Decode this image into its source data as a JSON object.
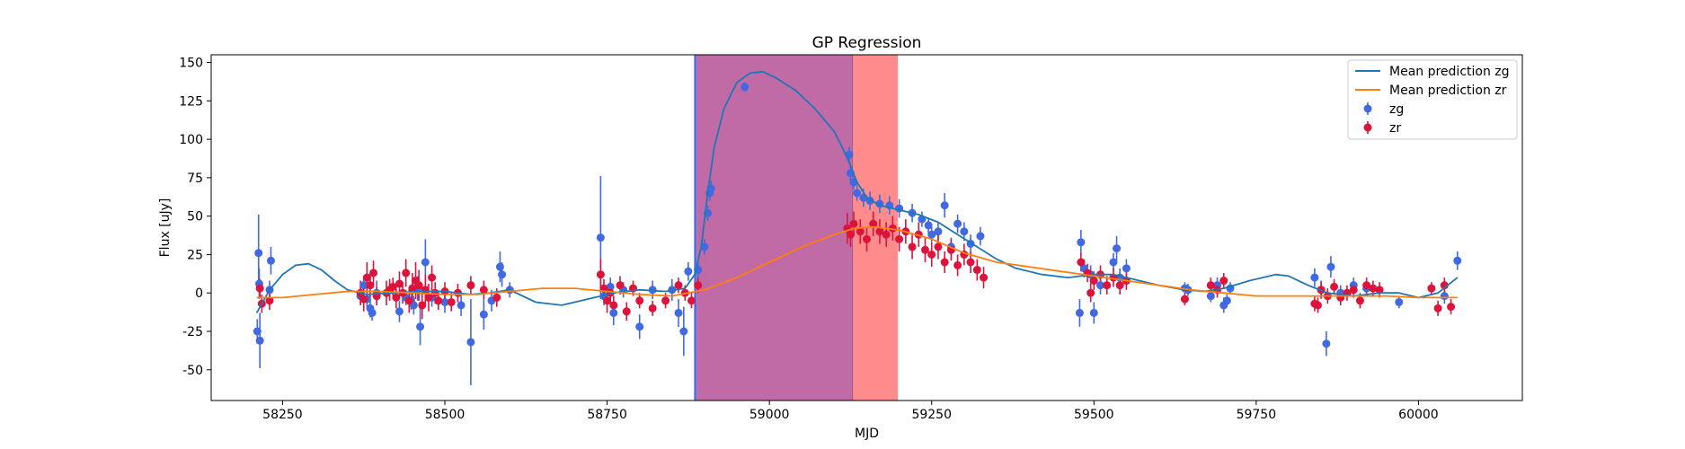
{
  "chart_data": {
    "type": "scatter",
    "title": "GP Regression",
    "xlabel": "MJD",
    "ylabel": "Flux [uJy]",
    "xlim": [
      58140,
      60160
    ],
    "ylim": [
      -70,
      155
    ],
    "xticks": [
      58250,
      58500,
      58750,
      59000,
      59250,
      59500,
      59750,
      60000
    ],
    "yticks": [
      -50,
      -25,
      0,
      25,
      50,
      75,
      100,
      125,
      150
    ],
    "legend_position": "top-right",
    "colors": {
      "zg_line": "#1f77b4",
      "zr_line": "#ff7f0e",
      "zg_points": "#4169e1",
      "zr_points": "#dc143c",
      "span_blue": "#5b6ee1",
      "span_red": "#ff8c8c",
      "span_overlap": "#c06aa6"
    },
    "spans": [
      {
        "name": "zg",
        "x_start": 58885,
        "x_end": 59128
      },
      {
        "name": "zr",
        "x_start": 58888,
        "x_end": 59198
      }
    ],
    "lines": [
      {
        "name": "Mean prediction zg",
        "x": [
          58210,
          58230,
          58250,
          58270,
          58290,
          58310,
          58330,
          58350,
          58380,
          58420,
          58460,
          58500,
          58540,
          58570,
          58600,
          58640,
          58680,
          58720,
          58760,
          58800,
          58840,
          58870,
          58885,
          58895,
          58905,
          58915,
          58930,
          58950,
          58970,
          58990,
          59010,
          59040,
          59070,
          59100,
          59120,
          59135,
          59150,
          59170,
          59200,
          59230,
          59260,
          59290,
          59320,
          59350,
          59380,
          59420,
          59460,
          59480,
          59500,
          59530,
          59560,
          59600,
          59640,
          59670,
          59700,
          59740,
          59780,
          59800,
          59830,
          59860,
          59900,
          59940,
          59970,
          60000,
          60030,
          60060
        ],
        "y": [
          -13,
          2,
          12,
          18,
          19,
          15,
          8,
          2,
          -1,
          0,
          1,
          1,
          -1,
          0,
          2,
          -6,
          -8,
          -4,
          0,
          2,
          1,
          3,
          12,
          30,
          65,
          95,
          120,
          137,
          143,
          144,
          140,
          132,
          120,
          105,
          88,
          72,
          62,
          57,
          54,
          51,
          46,
          38,
          30,
          22,
          16,
          12,
          10,
          11,
          12,
          12,
          9,
          5,
          2,
          1,
          3,
          8,
          12,
          11,
          5,
          0,
          -2,
          0,
          0,
          -3,
          0,
          10
        ]
      },
      {
        "name": "Mean prediction zr",
        "x": [
          58210,
          58250,
          58300,
          58350,
          58400,
          58450,
          58500,
          58550,
          58600,
          58650,
          58700,
          58750,
          58800,
          58850,
          58900,
          58950,
          59000,
          59050,
          59100,
          59130,
          59160,
          59200,
          59250,
          59300,
          59350,
          59400,
          59450,
          59500,
          59550,
          59600,
          59650,
          59700,
          59750,
          59800,
          59850,
          59900,
          59950,
          60000,
          60060
        ],
        "y": [
          -3,
          -3,
          -1,
          1,
          1,
          0,
          -1,
          -1,
          1,
          3,
          3,
          1,
          -1,
          -2,
          2,
          10,
          20,
          30,
          38,
          42,
          43,
          41,
          35,
          26,
          20,
          17,
          14,
          11,
          8,
          5,
          2,
          0,
          -2,
          -2,
          -2,
          -2,
          -2,
          -3,
          -3
        ]
      }
    ],
    "series": [
      {
        "name": "zg",
        "points": [
          [
            58211,
            -25,
            8
          ],
          [
            58213,
            26,
            25
          ],
          [
            58214,
            6,
            10
          ],
          [
            58215,
            -31,
            18
          ],
          [
            58230,
            2,
            6
          ],
          [
            58232,
            21,
            9
          ],
          [
            58370,
            -2,
            5
          ],
          [
            58375,
            5,
            6
          ],
          [
            58380,
            -4,
            5
          ],
          [
            58385,
            -10,
            6
          ],
          [
            58388,
            -13,
            5
          ],
          [
            58395,
            0,
            8
          ],
          [
            58430,
            -12,
            7
          ],
          [
            58440,
            -3,
            5
          ],
          [
            58448,
            -5,
            6
          ],
          [
            58452,
            -8,
            6
          ],
          [
            58458,
            3,
            8
          ],
          [
            58462,
            -22,
            12
          ],
          [
            58470,
            20,
            15
          ],
          [
            58480,
            -3,
            6
          ],
          [
            58500,
            -6,
            7
          ],
          [
            58525,
            -8,
            7
          ],
          [
            58540,
            -32,
            28
          ],
          [
            58560,
            -14,
            10
          ],
          [
            58572,
            -5,
            7
          ],
          [
            58585,
            17,
            10
          ],
          [
            58588,
            12,
            8
          ],
          [
            58600,
            2,
            5
          ],
          [
            58740,
            36,
            40
          ],
          [
            58745,
            -2,
            6
          ],
          [
            58755,
            4,
            6
          ],
          [
            58760,
            -13,
            8
          ],
          [
            58775,
            2,
            5
          ],
          [
            58800,
            -22,
            8
          ],
          [
            58820,
            2,
            6
          ],
          [
            58850,
            2,
            7
          ],
          [
            58860,
            -13,
            9
          ],
          [
            58868,
            -25,
            16
          ],
          [
            58875,
            14,
            6
          ],
          [
            58890,
            15,
            5
          ],
          [
            58900,
            30,
            5
          ],
          [
            58905,
            52,
            5
          ],
          [
            58908,
            65,
            5
          ],
          [
            58910,
            68,
            5
          ],
          [
            58962,
            134,
            3
          ],
          [
            59123,
            90,
            5
          ],
          [
            59125,
            78,
            5
          ],
          [
            59130,
            72,
            5
          ],
          [
            59135,
            65,
            5
          ],
          [
            59145,
            62,
            6
          ],
          [
            59155,
            60,
            6
          ],
          [
            59170,
            58,
            6
          ],
          [
            59185,
            57,
            6
          ],
          [
            59200,
            55,
            6
          ],
          [
            59220,
            52,
            6
          ],
          [
            59235,
            48,
            5
          ],
          [
            59245,
            44,
            5
          ],
          [
            59250,
            38,
            5
          ],
          [
            59260,
            40,
            6
          ],
          [
            59270,
            57,
            8
          ],
          [
            59280,
            30,
            6
          ],
          [
            59290,
            45,
            6
          ],
          [
            59300,
            40,
            6
          ],
          [
            59310,
            32,
            6
          ],
          [
            59325,
            37,
            6
          ],
          [
            59478,
            -13,
            9
          ],
          [
            59480,
            33,
            8
          ],
          [
            59485,
            16,
            6
          ],
          [
            59495,
            12,
            6
          ],
          [
            59500,
            -13,
            7
          ],
          [
            59510,
            5,
            6
          ],
          [
            59530,
            20,
            6
          ],
          [
            59535,
            29,
            8
          ],
          [
            59540,
            10,
            6
          ],
          [
            59550,
            16,
            6
          ],
          [
            59640,
            3,
            4
          ],
          [
            59645,
            2,
            4
          ],
          [
            59680,
            -2,
            4
          ],
          [
            59690,
            5,
            5
          ],
          [
            59700,
            -8,
            5
          ],
          [
            59705,
            -5,
            4
          ],
          [
            59710,
            3,
            4
          ],
          [
            59840,
            10,
            6
          ],
          [
            59850,
            2,
            6
          ],
          [
            59858,
            -33,
            8
          ],
          [
            59865,
            17,
            7
          ],
          [
            59880,
            0,
            5
          ],
          [
            59900,
            5,
            5
          ],
          [
            59920,
            3,
            5
          ],
          [
            59970,
            -6,
            4
          ],
          [
            60040,
            -2,
            5
          ],
          [
            60060,
            21,
            6
          ]
        ]
      },
      {
        "name": "zr",
        "points": [
          [
            58215,
            3,
            6
          ],
          [
            58218,
            -7,
            6
          ],
          [
            58230,
            -5,
            6
          ],
          [
            58370,
            0,
            8
          ],
          [
            58375,
            -4,
            8
          ],
          [
            58380,
            10,
            10
          ],
          [
            58385,
            5,
            8
          ],
          [
            58390,
            13,
            8
          ],
          [
            58395,
            -2,
            6
          ],
          [
            58410,
            0,
            8
          ],
          [
            58415,
            2,
            7
          ],
          [
            58420,
            4,
            6
          ],
          [
            58425,
            -3,
            7
          ],
          [
            58430,
            6,
            8
          ],
          [
            58435,
            0,
            7
          ],
          [
            58440,
            13,
            9
          ],
          [
            58445,
            -5,
            8
          ],
          [
            58450,
            3,
            10
          ],
          [
            58455,
            8,
            12
          ],
          [
            58460,
            5,
            10
          ],
          [
            58465,
            -8,
            9
          ],
          [
            58470,
            2,
            10
          ],
          [
            58475,
            -3,
            9
          ],
          [
            58480,
            10,
            8
          ],
          [
            58485,
            0,
            7
          ],
          [
            58490,
            -5,
            6
          ],
          [
            58500,
            1,
            6
          ],
          [
            58510,
            -6,
            6
          ],
          [
            58520,
            0,
            6
          ],
          [
            58540,
            5,
            6
          ],
          [
            58560,
            2,
            6
          ],
          [
            58580,
            -3,
            6
          ],
          [
            58740,
            12,
            10
          ],
          [
            58745,
            3,
            6
          ],
          [
            58750,
            -5,
            8
          ],
          [
            58755,
            0,
            7
          ],
          [
            58760,
            -8,
            6
          ],
          [
            58770,
            5,
            6
          ],
          [
            58780,
            -12,
            6
          ],
          [
            58790,
            3,
            5
          ],
          [
            58800,
            -5,
            5
          ],
          [
            58820,
            -10,
            5
          ],
          [
            58840,
            -5,
            5
          ],
          [
            58860,
            5,
            5
          ],
          [
            58870,
            0,
            5
          ],
          [
            58880,
            -5,
            5
          ],
          [
            58890,
            5,
            5
          ],
          [
            59120,
            42,
            10
          ],
          [
            59125,
            38,
            8
          ],
          [
            59130,
            45,
            8
          ],
          [
            59140,
            40,
            8
          ],
          [
            59150,
            35,
            8
          ],
          [
            59160,
            45,
            8
          ],
          [
            59170,
            40,
            8
          ],
          [
            59180,
            38,
            8
          ],
          [
            59190,
            42,
            8
          ],
          [
            59200,
            35,
            8
          ],
          [
            59210,
            40,
            8
          ],
          [
            59220,
            30,
            8
          ],
          [
            59230,
            38,
            8
          ],
          [
            59240,
            28,
            8
          ],
          [
            59250,
            25,
            8
          ],
          [
            59260,
            30,
            8
          ],
          [
            59270,
            20,
            7
          ],
          [
            59280,
            28,
            7
          ],
          [
            59290,
            18,
            7
          ],
          [
            59300,
            25,
            7
          ],
          [
            59310,
            20,
            7
          ],
          [
            59320,
            15,
            7
          ],
          [
            59330,
            10,
            7
          ],
          [
            59480,
            20,
            6
          ],
          [
            59490,
            13,
            6
          ],
          [
            59495,
            0,
            6
          ],
          [
            59500,
            8,
            6
          ],
          [
            59510,
            12,
            6
          ],
          [
            59520,
            5,
            6
          ],
          [
            59530,
            10,
            6
          ],
          [
            59540,
            5,
            6
          ],
          [
            59550,
            8,
            6
          ],
          [
            59640,
            -4,
            4
          ],
          [
            59680,
            5,
            5
          ],
          [
            59690,
            2,
            5
          ],
          [
            59700,
            8,
            5
          ],
          [
            59840,
            -7,
            5
          ],
          [
            59845,
            -8,
            5
          ],
          [
            59850,
            2,
            5
          ],
          [
            59860,
            -2,
            5
          ],
          [
            59870,
            4,
            5
          ],
          [
            59880,
            -3,
            5
          ],
          [
            59890,
            0,
            5
          ],
          [
            59900,
            2,
            5
          ],
          [
            59910,
            -5,
            5
          ],
          [
            59920,
            5,
            5
          ],
          [
            59930,
            3,
            5
          ],
          [
            59940,
            2,
            5
          ],
          [
            60020,
            3,
            4
          ],
          [
            60030,
            -10,
            5
          ],
          [
            60040,
            5,
            5
          ],
          [
            60050,
            -9,
            5
          ]
        ]
      }
    ]
  }
}
